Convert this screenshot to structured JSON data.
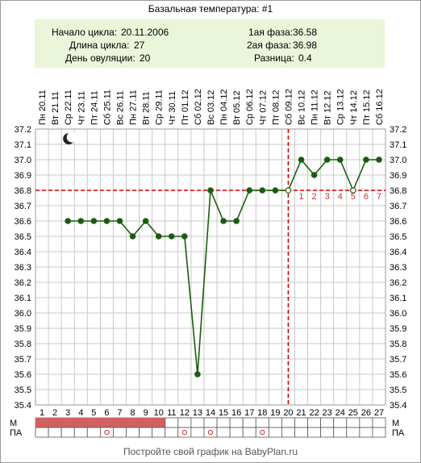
{
  "title": "Базальная температура: #1",
  "info": {
    "cycle_start_label": "Начало цикла:",
    "cycle_start_value": "20.11.2006",
    "cycle_length_label": "Длина цикла:",
    "cycle_length_value": "27",
    "ovulation_day_label": "День овуляции:",
    "ovulation_day_value": "20",
    "phase1_label": "1ая фаза:",
    "phase1_value": "36.58",
    "phase2_label": "2ая фаза:",
    "phase2_value": "36.98",
    "difference_label": "Разница:",
    "difference_value": "0.4"
  },
  "row_labels": {
    "menses": "М",
    "pa": "ПА"
  },
  "footer": "Постройте свой график на BabyPlan.ru",
  "chart_data": {
    "type": "line",
    "dates": [
      "Пн 20.11",
      "Вт 21.11",
      "Ср 22.11",
      "Чт 23.11",
      "Пт 24.11",
      "Сб 25.11",
      "Вс 26.11",
      "Пн 27.11",
      "Вт 28.11",
      "Ср 29.11",
      "Чт 30.11",
      "Пт 01.12",
      "Сб 02.12",
      "Вс 03.12",
      "Пн 04.12",
      "Вт 05.12",
      "Ср 06.12",
      "Чт 07.12",
      "Пт 08.12",
      "Сб 09.12",
      "Вс 10.12",
      "Пн 11.12",
      "Вт 12.12",
      "Ср 13.12",
      "Чт 14.12",
      "Пт 15.12",
      "Сб 16.12"
    ],
    "days": [
      "1",
      "2",
      "3",
      "4",
      "5",
      "6",
      "7",
      "8",
      "9",
      "10",
      "11",
      "12",
      "13",
      "14",
      "15",
      "16",
      "17",
      "18",
      "19",
      "20",
      "21",
      "22",
      "23",
      "24",
      "25",
      "26",
      "27"
    ],
    "series": [
      {
        "values": [
          null,
          null,
          36.6,
          36.6,
          36.6,
          36.6,
          36.6,
          36.5,
          36.6,
          36.5,
          36.5,
          36.5,
          35.6,
          36.8,
          36.6,
          36.6,
          36.8,
          36.8,
          36.8,
          36.8,
          37.0,
          36.9,
          37.0,
          37.0,
          36.8,
          37.0,
          37.0
        ],
        "open_points": [
          20,
          25
        ],
        "color": "#1a5c0f"
      }
    ],
    "y_ticks": [
      "37.2",
      "37.1",
      "37.0",
      "36.9",
      "36.8",
      "36.7",
      "36.6",
      "36.5",
      "36.4",
      "36.3",
      "36.2",
      "36.1",
      "36.0",
      "35.9",
      "35.8",
      "35.7",
      "35.6",
      "35.5",
      "35.4"
    ],
    "ylim": [
      35.4,
      37.2
    ],
    "grid": true,
    "coverline_value": 36.8,
    "ovulation_day": 20,
    "post_ovulation_labels": [
      "1",
      "2",
      "3",
      "4",
      "5",
      "6",
      "7"
    ],
    "menses_days": [
      1,
      2,
      3,
      4,
      5,
      6,
      7,
      8,
      9,
      10
    ],
    "pa_marks": [
      6,
      12,
      14,
      18
    ],
    "colors": {
      "line": "#1a5c0f",
      "grid": "#c8c8c8",
      "dashed": "#cc0000",
      "menses": "#d16060",
      "info_bg": "#eaf5d9"
    },
    "moon_icon_day": 3
  }
}
